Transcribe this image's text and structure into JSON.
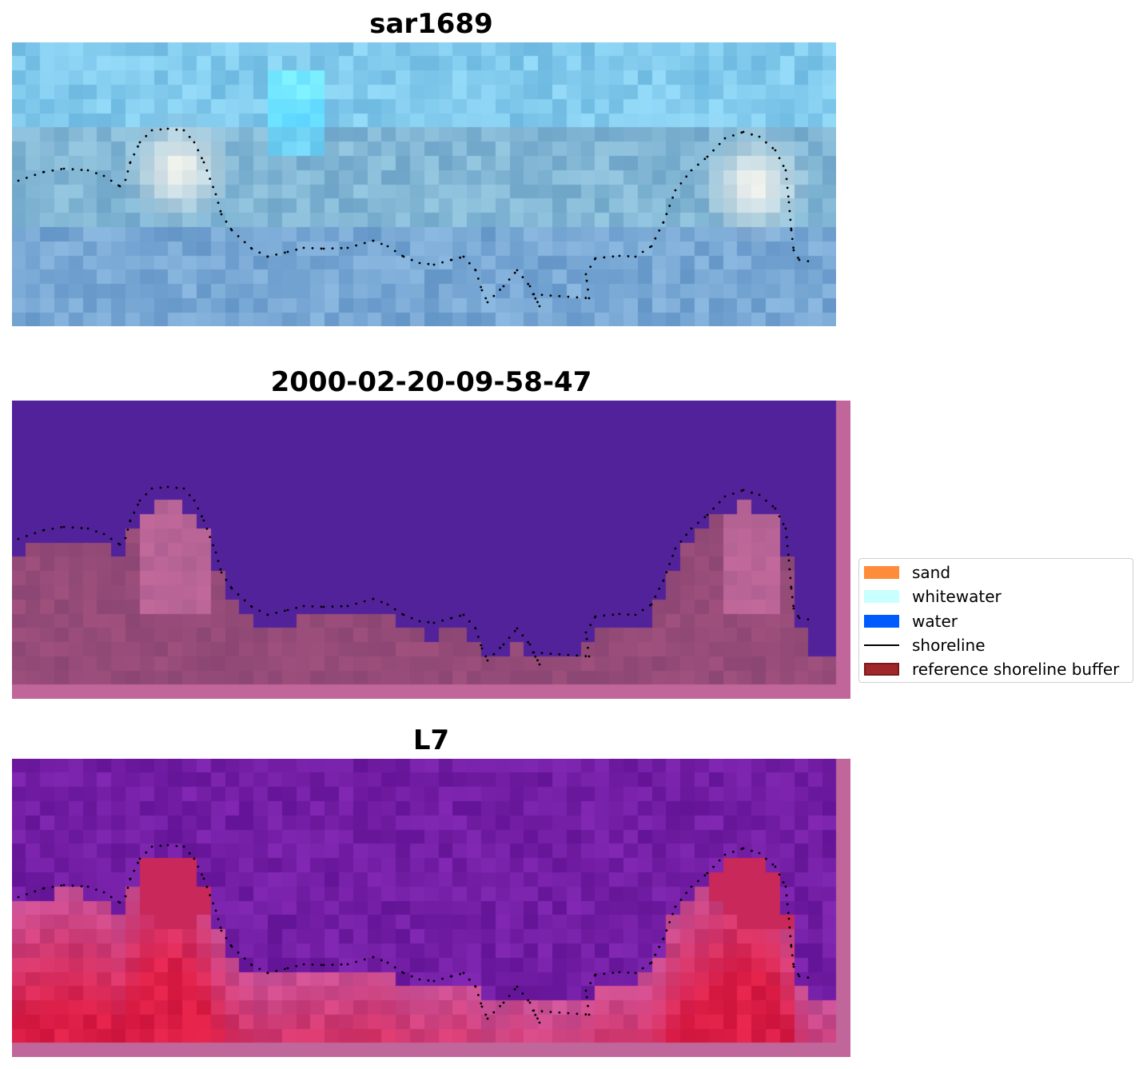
{
  "panels": [
    {
      "title": "sar1689",
      "image": "sar1689"
    },
    {
      "title": "2000-02-20-09-58-47",
      "image": "classification"
    },
    {
      "title": "L7",
      "image": "L7"
    }
  ],
  "legend": {
    "placement": "center-right",
    "items": [
      {
        "label": "sand",
        "color": "#ff8c3a",
        "kind": "patch"
      },
      {
        "label": "whitewater",
        "color": "#c8ffff",
        "kind": "patch"
      },
      {
        "label": "water",
        "color": "#005bff",
        "kind": "patch"
      },
      {
        "label": "shoreline",
        "color": "#000000",
        "kind": "line"
      },
      {
        "label": "reference shoreline buffer",
        "color": "#a0282a",
        "kind": "patch"
      }
    ]
  },
  "colors": {
    "buffer_overlay": "#c0669a",
    "water_class": "#52229a",
    "shoreline_dots": "#000000"
  }
}
